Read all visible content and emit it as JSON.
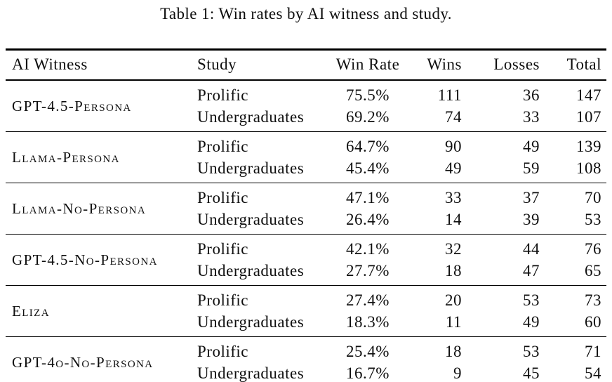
{
  "page": {
    "background_color": "#ffffff",
    "text_color": "#0f0f0f",
    "rule_color": "#000000"
  },
  "caption": "Table 1: Win rates by AI witness and study.",
  "table": {
    "headers": [
      "AI Witness",
      "Study",
      "Win Rate",
      "Wins",
      "Losses",
      "Total"
    ],
    "groups": [
      {
        "witness": "GPT-4.5-Persona",
        "rows": [
          {
            "study": "Prolific",
            "win_rate": "75.5%",
            "wins": "111",
            "losses": "36",
            "total": "147"
          },
          {
            "study": "Undergraduates",
            "win_rate": "69.2%",
            "wins": "74",
            "losses": "33",
            "total": "107"
          }
        ]
      },
      {
        "witness": "Llama-Persona",
        "rows": [
          {
            "study": "Prolific",
            "win_rate": "64.7%",
            "wins": "90",
            "losses": "49",
            "total": "139"
          },
          {
            "study": "Undergraduates",
            "win_rate": "45.4%",
            "wins": "49",
            "losses": "59",
            "total": "108"
          }
        ]
      },
      {
        "witness": "Llama-No-Persona",
        "rows": [
          {
            "study": "Prolific",
            "win_rate": "47.1%",
            "wins": "33",
            "losses": "37",
            "total": "70"
          },
          {
            "study": "Undergraduates",
            "win_rate": "26.4%",
            "wins": "14",
            "losses": "39",
            "total": "53"
          }
        ]
      },
      {
        "witness": "GPT-4.5-No-Persona",
        "rows": [
          {
            "study": "Prolific",
            "win_rate": "42.1%",
            "wins": "32",
            "losses": "44",
            "total": "76"
          },
          {
            "study": "Undergraduates",
            "win_rate": "27.7%",
            "wins": "18",
            "losses": "47",
            "total": "65"
          }
        ]
      },
      {
        "witness": "Eliza",
        "rows": [
          {
            "study": "Prolific",
            "win_rate": "27.4%",
            "wins": "20",
            "losses": "53",
            "total": "73"
          },
          {
            "study": "Undergraduates",
            "win_rate": "18.3%",
            "wins": "11",
            "losses": "49",
            "total": "60"
          }
        ]
      },
      {
        "witness": "GPT-4o-No-Persona",
        "rows": [
          {
            "study": "Prolific",
            "win_rate": "25.4%",
            "wins": "18",
            "losses": "53",
            "total": "71"
          },
          {
            "study": "Undergraduates",
            "win_rate": "16.7%",
            "wins": "9",
            "losses": "45",
            "total": "54"
          }
        ]
      }
    ]
  }
}
